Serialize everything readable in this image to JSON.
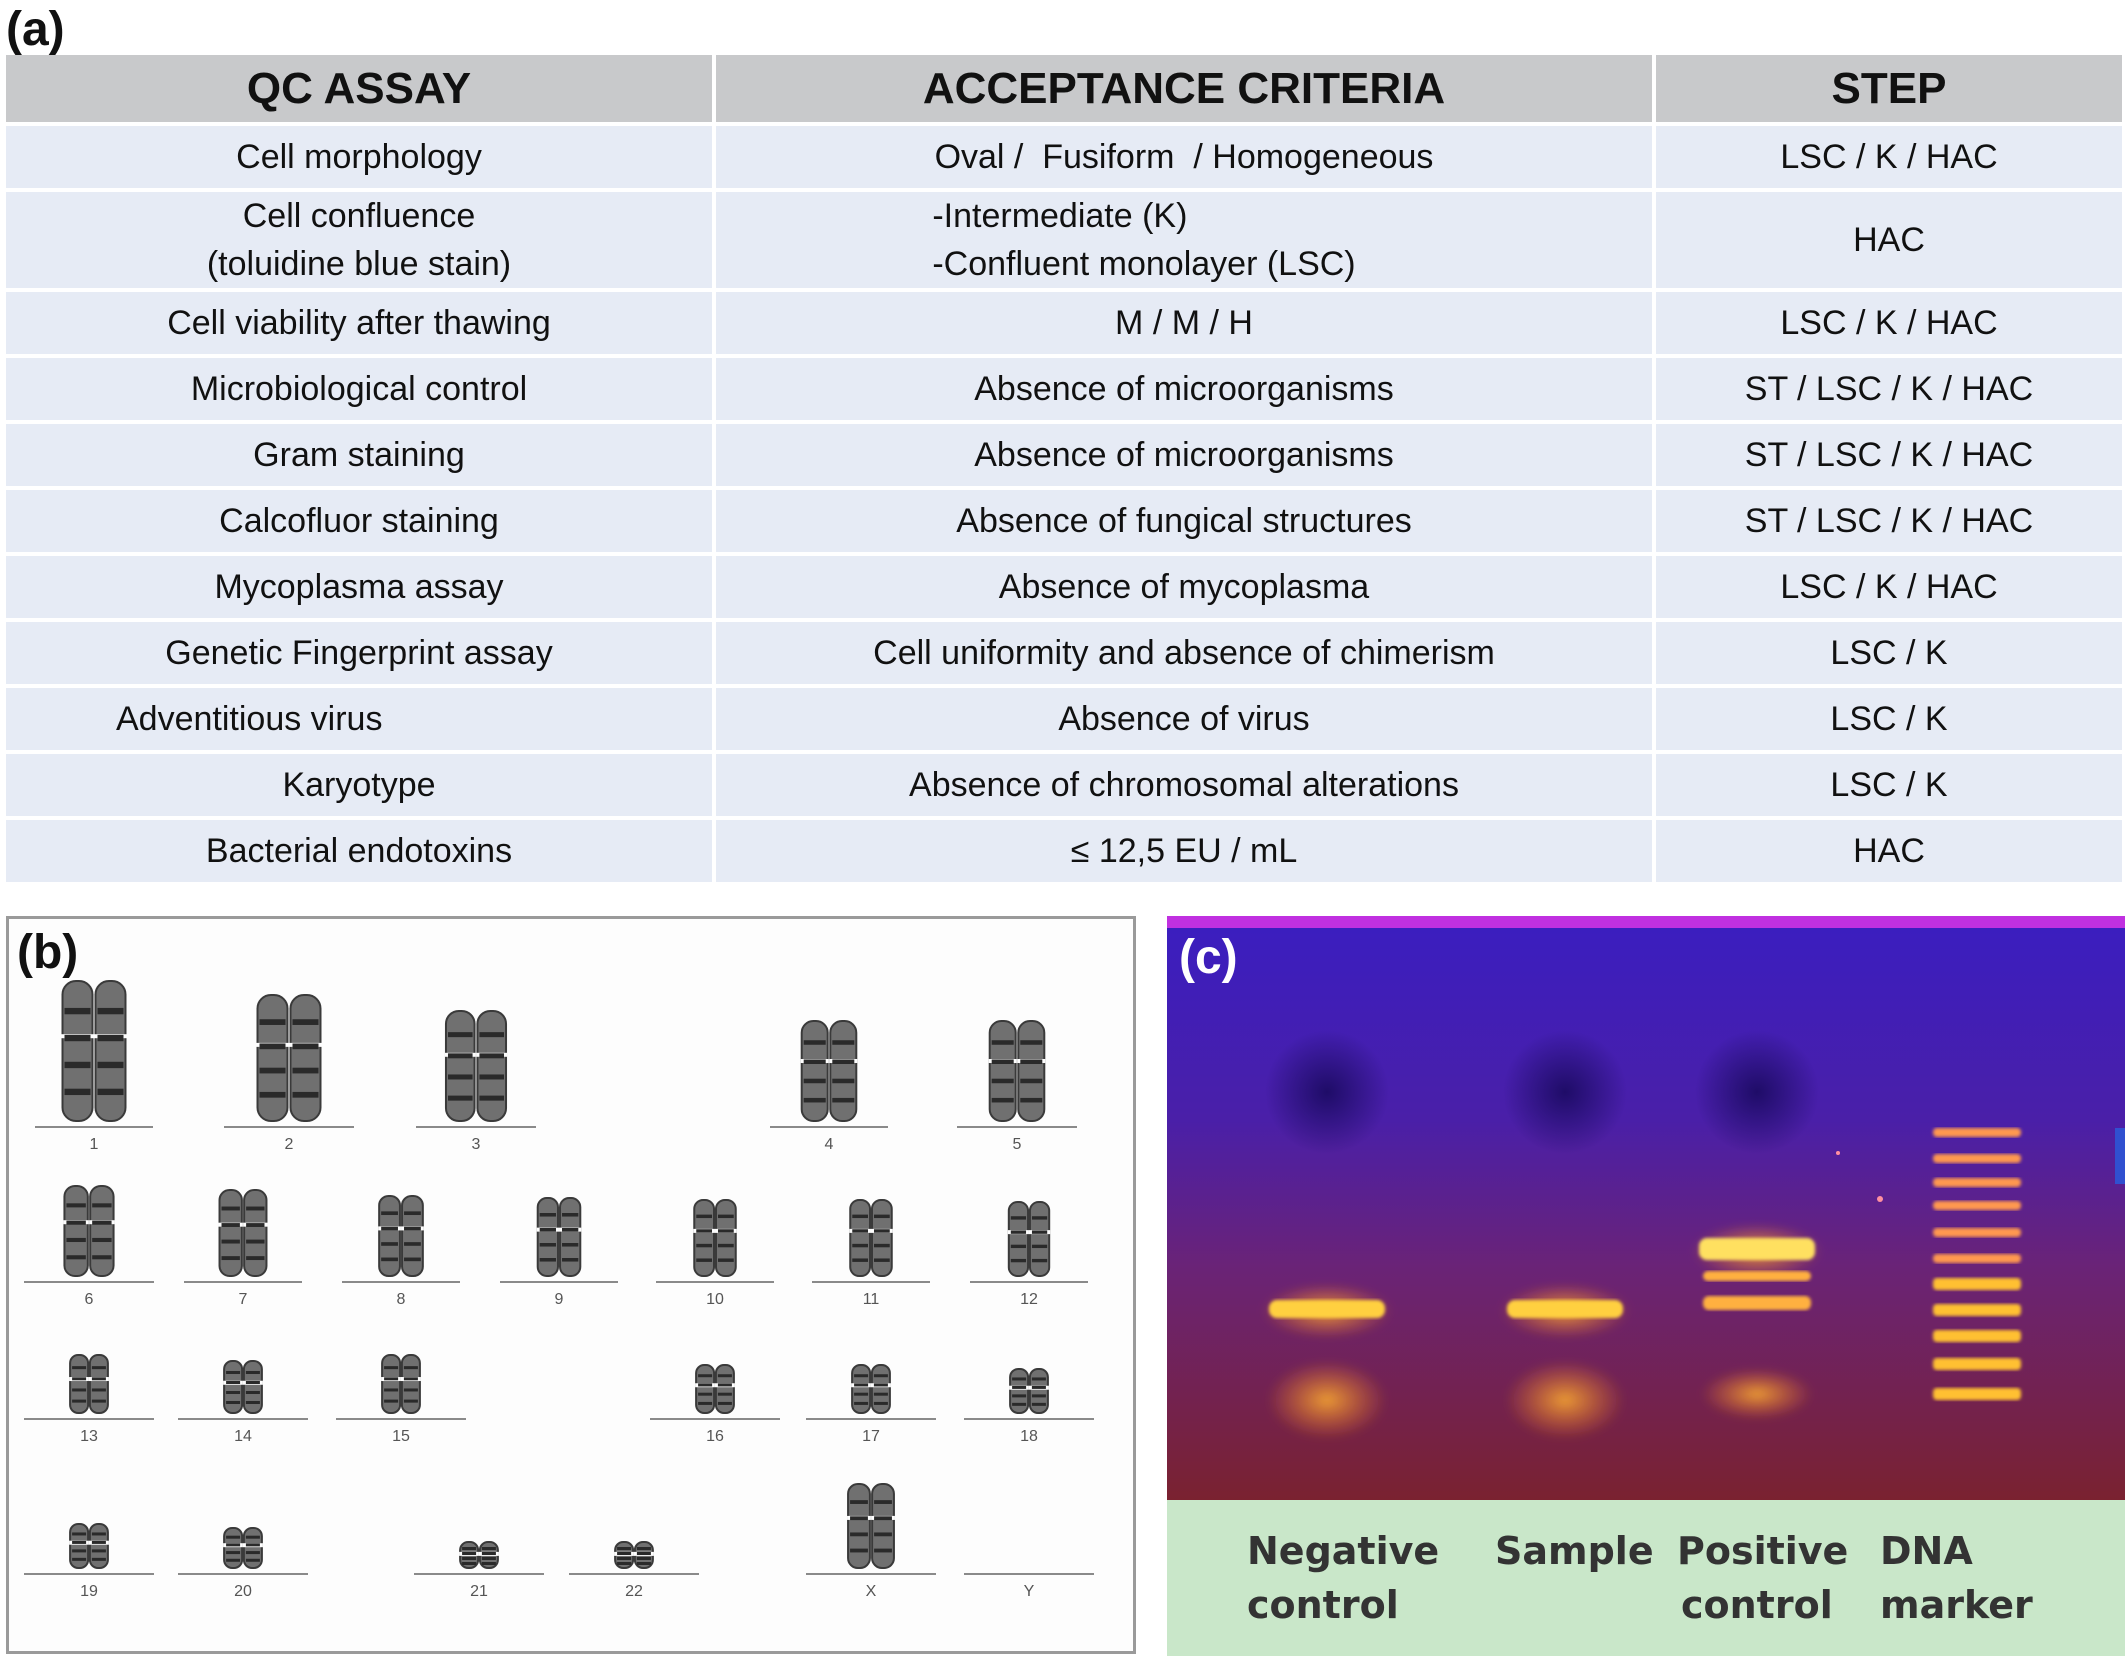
{
  "panels": {
    "a": "(a)",
    "b": "(b)",
    "c": "(c)"
  },
  "table": {
    "headers": [
      "QC ASSAY",
      "ACCEPTANCE CRITERIA",
      "STEP"
    ],
    "rows": [
      {
        "assay": "Cell morphology",
        "criteria": "Oval /  Fusiform  / Homogeneous",
        "step": "LSC / K / HAC"
      },
      {
        "assay_line1": "Cell confluence",
        "assay_line2": "(toluidine blue stain)",
        "criteria_line1": "-Intermediate (K)",
        "criteria_line2": "-Confluent monolayer (LSC)",
        "step": "HAC"
      },
      {
        "assay": "Cell viability after thawing",
        "criteria": "M / M / H",
        "step": "LSC / K / HAC"
      },
      {
        "assay": "Microbiological control",
        "criteria": "Absence of microorganisms",
        "step": "ST / LSC / K / HAC"
      },
      {
        "assay": "Gram staining",
        "criteria": "Absence of microorganisms",
        "step": "ST / LSC / K / HAC"
      },
      {
        "assay": "Calcofluor staining",
        "criteria": "Absence of fungical structures",
        "step": "ST / LSC / K / HAC"
      },
      {
        "assay": "Mycoplasma assay",
        "criteria": "Absence of mycoplasma",
        "step": "LSC / K / HAC"
      },
      {
        "assay": "Genetic Fingerprint assay",
        "criteria": "Cell uniformity and absence of chimerism",
        "step": "LSC / K"
      },
      {
        "assay": "Adventitious virus",
        "criteria": "Absence of virus",
        "step": "LSC / K"
      },
      {
        "assay": "Karyotype",
        "criteria": "Absence of chromosomal alterations",
        "step": "LSC / K"
      },
      {
        "assay": "Bacterial endotoxins",
        "criteria": "≤ 12,5 EU / mL",
        "step": "HAC"
      }
    ]
  },
  "karyotype": {
    "rows": [
      [
        "1",
        "2",
        "3",
        "4",
        "5"
      ],
      [
        "6",
        "7",
        "8",
        "9",
        "10",
        "11",
        "12"
      ],
      [
        "13",
        "14",
        "15",
        "16",
        "17",
        "18"
      ],
      [
        "19",
        "20",
        "21",
        "22",
        "X",
        "Y"
      ]
    ]
  },
  "gel": {
    "lanes": [
      {
        "label_line1": "Negative",
        "label_line2": "control"
      },
      {
        "label_line1": "Sample",
        "label_line2": ""
      },
      {
        "label_line1": "Positive",
        "label_line2": "control"
      },
      {
        "label_line1": "DNA marker",
        "label_line2": ""
      }
    ],
    "colors": {
      "gel_top": "#3a1ec0",
      "gel_bottom": "#7a2230",
      "band": "#ffd040",
      "label_bg": "#c9e7c9"
    }
  }
}
